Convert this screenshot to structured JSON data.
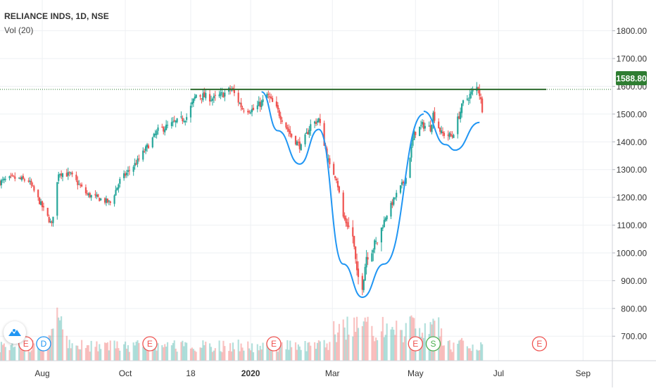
{
  "symbol_title": "RELIANCE INDS, 1D, NSE",
  "indicator_label": "Vol (20)",
  "last_price_label": "1588.80",
  "colors": {
    "up": "#26a69a",
    "down": "#ef5350",
    "pattern": "#2196f3",
    "resistance": "#2e7d32",
    "grid": "#eef0f3",
    "axis_text": "#333333"
  },
  "icons": [
    "tradingview-logo-icon"
  ],
  "markers": [
    {
      "label": "E",
      "kind": "earnings",
      "date": "2019-07-20"
    },
    {
      "label": "D",
      "kind": "dividend",
      "date": "2019-08-02"
    },
    {
      "label": "E",
      "kind": "earnings",
      "date": "2019-10-19"
    },
    {
      "label": "E",
      "kind": "earnings",
      "date": "2020-01-18"
    },
    {
      "label": "E",
      "kind": "earnings",
      "date": "2020-05-01"
    },
    {
      "label": "S",
      "kind": "split",
      "date": "2020-05-14"
    },
    {
      "label": "E",
      "kind": "earnings",
      "date": "2020-07-31"
    }
  ],
  "chart_data": {
    "type": "candlestick",
    "title": "RELIANCE INDS, 1D, NSE",
    "xlabel": "",
    "ylabel": "",
    "ylim": [
      660,
      1860
    ],
    "x_range": [
      "2019-07-01",
      "2020-09-22"
    ],
    "y_ticks": [
      700,
      800,
      900,
      1000,
      1100,
      1200,
      1300,
      1400,
      1500,
      1600,
      1700,
      1800
    ],
    "y_tick_labels": [
      "700.00",
      "800.00",
      "900.00",
      "1000.00",
      "1100.00",
      "1200.00",
      "1300.00",
      "1400.00",
      "1500.00",
      "1600.00",
      "1700.00",
      "1800.00"
    ],
    "x_ticks": [
      {
        "date": "2019-08-01",
        "label": "Aug",
        "bold": false
      },
      {
        "date": "2019-10-01",
        "label": "Oct",
        "bold": false
      },
      {
        "date": "2019-11-18",
        "label": "18",
        "bold": false
      },
      {
        "date": "2020-01-01",
        "label": "2020",
        "bold": true
      },
      {
        "date": "2020-03-01",
        "label": "Mar",
        "bold": false
      },
      {
        "date": "2020-05-01",
        "label": "May",
        "bold": false
      },
      {
        "date": "2020-07-01",
        "label": "Jul",
        "bold": false
      },
      {
        "date": "2020-09-01",
        "label": "Sep",
        "bold": false
      }
    ],
    "grid": true,
    "price_anchors": [
      [
        "2019-07-01",
        1255
      ],
      [
        "2019-07-10",
        1270
      ],
      [
        "2019-07-22",
        1260
      ],
      [
        "2019-07-31",
        1175
      ],
      [
        "2019-08-08",
        1100
      ],
      [
        "2019-08-13",
        1290
      ],
      [
        "2019-08-22",
        1280
      ],
      [
        "2019-09-03",
        1210
      ],
      [
        "2019-09-12",
        1195
      ],
      [
        "2019-09-20",
        1180
      ],
      [
        "2019-09-27",
        1260
      ],
      [
        "2019-10-10",
        1330
      ],
      [
        "2019-10-25",
        1440
      ],
      [
        "2019-11-05",
        1465
      ],
      [
        "2019-11-15",
        1490
      ],
      [
        "2019-11-22",
        1570
      ],
      [
        "2019-12-05",
        1555
      ],
      [
        "2019-12-13",
        1575
      ],
      [
        "2019-12-18",
        1590
      ],
      [
        "2019-12-26",
        1520
      ],
      [
        "2020-01-03",
        1515
      ],
      [
        "2020-01-10",
        1545
      ],
      [
        "2020-01-13",
        1570
      ],
      [
        "2020-01-21",
        1510
      ],
      [
        "2020-01-31",
        1420
      ],
      [
        "2020-02-07",
        1380
      ],
      [
        "2020-02-14",
        1460
      ],
      [
        "2020-02-20",
        1480
      ],
      [
        "2020-02-28",
        1310
      ],
      [
        "2020-03-04",
        1270
      ],
      [
        "2020-03-09",
        1130
      ],
      [
        "2020-03-16",
        1060
      ],
      [
        "2020-03-19",
        920
      ],
      [
        "2020-03-23",
        885
      ],
      [
        "2020-03-26",
        990
      ],
      [
        "2020-04-03",
        1040
      ],
      [
        "2020-04-09",
        1130
      ],
      [
        "2020-04-17",
        1210
      ],
      [
        "2020-04-24",
        1270
      ],
      [
        "2020-04-30",
        1430
      ],
      [
        "2020-05-06",
        1460
      ],
      [
        "2020-05-12",
        1450
      ],
      [
        "2020-05-14",
        1500
      ],
      [
        "2020-05-20",
        1430
      ],
      [
        "2020-05-28",
        1420
      ],
      [
        "2020-06-05",
        1540
      ],
      [
        "2020-06-12",
        1580
      ],
      [
        "2020-06-16",
        1600
      ],
      [
        "2020-06-19",
        1520
      ]
    ],
    "volume_peaks": [
      [
        "2019-08-12",
        0.9
      ],
      [
        "2020-03-12",
        0.65
      ],
      [
        "2020-03-20",
        0.55
      ],
      [
        "2020-04-28",
        0.7
      ],
      [
        "2020-05-05",
        0.6
      ],
      [
        "2020-05-12",
        0.8
      ],
      [
        "2020-06-04",
        0.35
      ]
    ],
    "resistance_line": {
      "value": 1588.8,
      "from": "2019-11-18",
      "to": "2020-08-05"
    },
    "pattern_curves": [
      {
        "name": "left shoulder",
        "points": [
          [
            "2020-01-09",
            1580
          ],
          [
            "2020-01-21",
            1440
          ],
          [
            "2020-02-06",
            1320
          ],
          [
            "2020-02-20",
            1445
          ]
        ]
      },
      {
        "name": "head",
        "points": [
          [
            "2020-02-20",
            1445
          ],
          [
            "2020-03-09",
            960
          ],
          [
            "2020-03-23",
            840
          ],
          [
            "2020-04-08",
            960
          ],
          [
            "2020-05-07",
            1500
          ]
        ]
      },
      {
        "name": "right shoulder",
        "points": [
          [
            "2020-05-07",
            1510
          ],
          [
            "2020-05-23",
            1390
          ],
          [
            "2020-05-30",
            1370
          ],
          [
            "2020-06-17",
            1470
          ]
        ]
      }
    ]
  }
}
